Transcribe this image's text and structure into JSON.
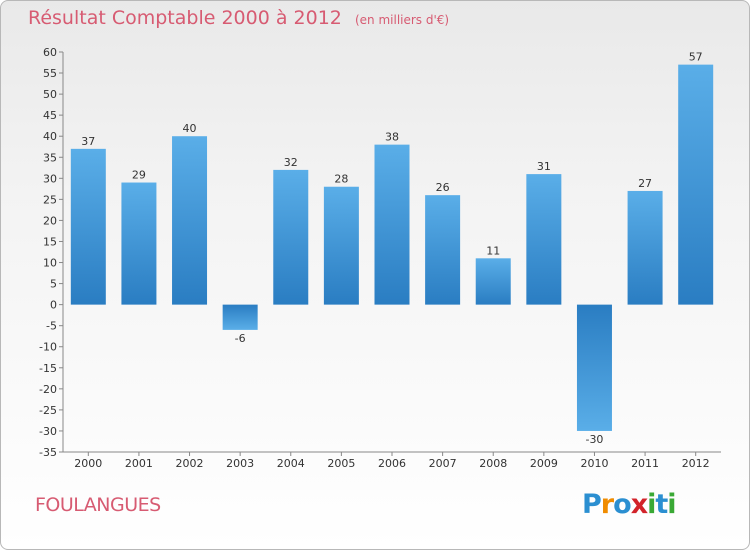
{
  "title": "Résultat Comptable 2000 à 2012",
  "subtitle": "(en milliers d'€)",
  "commune": "FOULANGUES",
  "logo": {
    "letters": [
      "P",
      "r",
      "o",
      "x",
      "i",
      "t",
      "i"
    ],
    "colors": [
      "#2b8fd1",
      "#f08c00",
      "#2b8fd1",
      "#d2232a",
      "#3aa935",
      "#2b8fd1",
      "#3aa935"
    ]
  },
  "colors": {
    "bar_top": "#5aaee8",
    "bar_bottom": "#2a7dc2",
    "title": "#d75b72"
  },
  "chart_data": {
    "type": "bar",
    "title": "Résultat Comptable 2000 à 2012",
    "xlabel": "",
    "ylabel": "",
    "categories": [
      "2000",
      "2001",
      "2002",
      "2003",
      "2004",
      "2005",
      "2006",
      "2007",
      "2008",
      "2009",
      "2010",
      "2011",
      "2012"
    ],
    "values": [
      37,
      29,
      40,
      -6,
      32,
      28,
      38,
      26,
      11,
      31,
      -30,
      27,
      57
    ],
    "ylim": [
      -35,
      60
    ],
    "yticks": [
      60,
      55,
      50,
      45,
      40,
      35,
      30,
      25,
      20,
      15,
      10,
      5,
      0,
      -5,
      -10,
      -15,
      -20,
      -25,
      -30,
      -35
    ],
    "grid": false
  }
}
